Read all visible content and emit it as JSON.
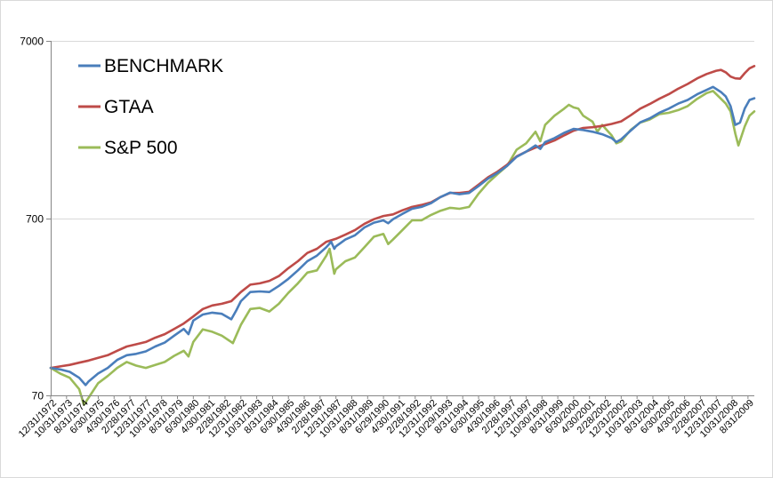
{
  "chart_data": {
    "type": "line",
    "y_scale": "log",
    "ylim": [
      70,
      7000
    ],
    "y_ticks": [
      {
        "value": 70,
        "label": "70"
      },
      {
        "value": 700,
        "label": "700"
      },
      {
        "value": 7000,
        "label": "7000"
      }
    ],
    "grid": "horizontal",
    "legend_position": "top-left",
    "x_start": "1972-12-31",
    "x_end": "2009-12-31",
    "x_tick_labels": [
      "12/31/1972",
      "10/31/1973",
      "8/31/1974",
      "6/30/1975",
      "4/30/1976",
      "2/28/1977",
      "12/31/1977",
      "10/31/1978",
      "8/31/1979",
      "6/30/1980",
      "4/30/1981",
      "2/28/1982",
      "12/31/1982",
      "10/31/1983",
      "8/31/1984",
      "6/30/1985",
      "4/30/1986",
      "2/28/1987",
      "12/31/1987",
      "10/31/1988",
      "8/31/1989",
      "6/29/1990",
      "4/30/1991",
      "2/28/1992",
      "12/31/1992",
      "10/29/1993",
      "8/31/1994",
      "6/30/1995",
      "4/30/1996",
      "2/28/1997",
      "12/31/1997",
      "10/30/1998",
      "8/31/1999",
      "6/30/2000",
      "4/30/2001",
      "2/28/2002",
      "12/31/2002",
      "10/31/2003",
      "8/31/2004",
      "6/30/2005",
      "4/30/2006",
      "2/28/2007",
      "12/31/2007",
      "10/31/2008",
      "8/31/2009"
    ],
    "series": [
      {
        "name": "BENCHMARK",
        "color": "#4a7ebb",
        "points": [
          [
            "1972-12-31",
            100
          ],
          [
            "1973-06-30",
            98
          ],
          [
            "1973-12-31",
            95
          ],
          [
            "1974-06-30",
            88
          ],
          [
            "1974-10-31",
            80
          ],
          [
            "1974-12-31",
            84
          ],
          [
            "1975-06-30",
            93
          ],
          [
            "1975-12-31",
            100
          ],
          [
            "1976-06-30",
            111
          ],
          [
            "1976-12-31",
            118
          ],
          [
            "1977-06-30",
            120
          ],
          [
            "1977-12-31",
            124
          ],
          [
            "1978-06-30",
            132
          ],
          [
            "1978-12-31",
            139
          ],
          [
            "1979-06-30",
            152
          ],
          [
            "1979-12-31",
            166
          ],
          [
            "1980-03-31",
            155
          ],
          [
            "1980-06-30",
            185
          ],
          [
            "1980-12-31",
            200
          ],
          [
            "1981-06-30",
            205
          ],
          [
            "1981-12-31",
            202
          ],
          [
            "1982-06-30",
            188
          ],
          [
            "1982-09-30",
            210
          ],
          [
            "1982-12-31",
            238
          ],
          [
            "1983-06-30",
            268
          ],
          [
            "1983-12-31",
            270
          ],
          [
            "1984-06-30",
            268
          ],
          [
            "1984-12-31",
            290
          ],
          [
            "1985-06-30",
            318
          ],
          [
            "1985-12-31",
            355
          ],
          [
            "1986-06-30",
            400
          ],
          [
            "1986-12-31",
            430
          ],
          [
            "1987-06-30",
            480
          ],
          [
            "1987-09-30",
            515
          ],
          [
            "1987-11-30",
            470
          ],
          [
            "1987-12-31",
            485
          ],
          [
            "1988-06-30",
            530
          ],
          [
            "1988-12-31",
            560
          ],
          [
            "1989-06-30",
            620
          ],
          [
            "1989-12-31",
            660
          ],
          [
            "1990-06-30",
            680
          ],
          [
            "1990-09-30",
            655
          ],
          [
            "1990-12-31",
            690
          ],
          [
            "1991-06-30",
            740
          ],
          [
            "1991-12-31",
            790
          ],
          [
            "1992-06-30",
            810
          ],
          [
            "1992-12-31",
            850
          ],
          [
            "1993-06-30",
            920
          ],
          [
            "1993-12-31",
            975
          ],
          [
            "1994-06-30",
            955
          ],
          [
            "1994-12-31",
            970
          ],
          [
            "1995-06-30",
            1060
          ],
          [
            "1995-12-31",
            1170
          ],
          [
            "1996-06-30",
            1260
          ],
          [
            "1996-12-31",
            1380
          ],
          [
            "1997-06-30",
            1550
          ],
          [
            "1997-12-31",
            1660
          ],
          [
            "1998-06-30",
            1800
          ],
          [
            "1998-09-30",
            1720
          ],
          [
            "1998-12-31",
            1880
          ],
          [
            "1999-06-30",
            1980
          ],
          [
            "1999-12-31",
            2120
          ],
          [
            "2000-06-30",
            2230
          ],
          [
            "2000-12-31",
            2200
          ],
          [
            "2001-06-30",
            2150
          ],
          [
            "2001-12-31",
            2080
          ],
          [
            "2002-06-30",
            1980
          ],
          [
            "2002-09-30",
            1880
          ],
          [
            "2002-12-31",
            1950
          ],
          [
            "2003-06-30",
            2180
          ],
          [
            "2003-12-31",
            2430
          ],
          [
            "2004-06-30",
            2560
          ],
          [
            "2004-12-31",
            2750
          ],
          [
            "2005-06-30",
            2900
          ],
          [
            "2005-12-31",
            3100
          ],
          [
            "2006-06-30",
            3250
          ],
          [
            "2006-12-31",
            3500
          ],
          [
            "2007-06-30",
            3700
          ],
          [
            "2007-10-31",
            3850
          ],
          [
            "2008-03-31",
            3600
          ],
          [
            "2008-06-30",
            3400
          ],
          [
            "2008-09-30",
            3000
          ],
          [
            "2008-12-31",
            2350
          ],
          [
            "2009-03-31",
            2420
          ],
          [
            "2009-06-30",
            2900
          ],
          [
            "2009-09-30",
            3250
          ],
          [
            "2009-12-31",
            3320
          ]
        ]
      },
      {
        "name": "GTAA",
        "color": "#be4b48",
        "points": [
          [
            "1972-12-31",
            100
          ],
          [
            "1973-06-30",
            102
          ],
          [
            "1973-12-31",
            104
          ],
          [
            "1974-06-30",
            107
          ],
          [
            "1974-12-31",
            110
          ],
          [
            "1975-06-30",
            114
          ],
          [
            "1975-12-31",
            118
          ],
          [
            "1976-06-30",
            125
          ],
          [
            "1976-12-31",
            132
          ],
          [
            "1977-06-30",
            136
          ],
          [
            "1977-12-31",
            140
          ],
          [
            "1978-06-30",
            148
          ],
          [
            "1978-12-31",
            155
          ],
          [
            "1979-06-30",
            166
          ],
          [
            "1979-12-31",
            178
          ],
          [
            "1980-06-30",
            195
          ],
          [
            "1980-12-31",
            215
          ],
          [
            "1981-06-30",
            225
          ],
          [
            "1981-12-31",
            230
          ],
          [
            "1982-06-30",
            238
          ],
          [
            "1982-12-31",
            268
          ],
          [
            "1983-06-30",
            295
          ],
          [
            "1983-12-31",
            300
          ],
          [
            "1984-06-30",
            310
          ],
          [
            "1984-12-31",
            330
          ],
          [
            "1985-06-30",
            365
          ],
          [
            "1985-12-31",
            400
          ],
          [
            "1986-06-30",
            445
          ],
          [
            "1986-12-31",
            470
          ],
          [
            "1987-06-30",
            515
          ],
          [
            "1987-12-31",
            535
          ],
          [
            "1988-06-30",
            565
          ],
          [
            "1988-12-31",
            600
          ],
          [
            "1989-06-30",
            650
          ],
          [
            "1989-12-31",
            690
          ],
          [
            "1990-06-30",
            720
          ],
          [
            "1990-12-31",
            735
          ],
          [
            "1991-06-30",
            775
          ],
          [
            "1991-12-31",
            810
          ],
          [
            "1992-06-30",
            830
          ],
          [
            "1992-12-31",
            860
          ],
          [
            "1993-06-30",
            920
          ],
          [
            "1993-12-31",
            970
          ],
          [
            "1994-06-30",
            970
          ],
          [
            "1994-12-31",
            985
          ],
          [
            "1995-06-30",
            1080
          ],
          [
            "1995-12-31",
            1190
          ],
          [
            "1996-06-30",
            1280
          ],
          [
            "1996-12-31",
            1400
          ],
          [
            "1997-06-30",
            1560
          ],
          [
            "1997-12-31",
            1660
          ],
          [
            "1998-06-30",
            1750
          ],
          [
            "1998-12-31",
            1830
          ],
          [
            "1999-06-30",
            1920
          ],
          [
            "1999-12-31",
            2050
          ],
          [
            "2000-06-30",
            2180
          ],
          [
            "2000-12-31",
            2260
          ],
          [
            "2001-06-30",
            2280
          ],
          [
            "2001-12-31",
            2320
          ],
          [
            "2002-06-30",
            2380
          ],
          [
            "2002-12-31",
            2460
          ],
          [
            "2003-06-30",
            2660
          ],
          [
            "2003-12-31",
            2900
          ],
          [
            "2004-06-30",
            3080
          ],
          [
            "2004-12-31",
            3300
          ],
          [
            "2005-06-30",
            3500
          ],
          [
            "2005-12-31",
            3760
          ],
          [
            "2006-06-30",
            4000
          ],
          [
            "2006-12-31",
            4300
          ],
          [
            "2007-06-30",
            4550
          ],
          [
            "2007-12-31",
            4750
          ],
          [
            "2008-03-31",
            4800
          ],
          [
            "2008-06-30",
            4650
          ],
          [
            "2008-09-30",
            4400
          ],
          [
            "2008-12-31",
            4300
          ],
          [
            "2009-03-31",
            4280
          ],
          [
            "2009-06-30",
            4600
          ],
          [
            "2009-09-30",
            4900
          ],
          [
            "2009-12-31",
            5050
          ]
        ]
      },
      {
        "name": "S&P 500",
        "color": "#9bbb59",
        "points": [
          [
            "1972-12-31",
            100
          ],
          [
            "1973-06-30",
            93
          ],
          [
            "1973-12-31",
            88
          ],
          [
            "1974-06-30",
            76
          ],
          [
            "1974-09-30",
            62
          ],
          [
            "1974-12-31",
            68
          ],
          [
            "1975-06-30",
            82
          ],
          [
            "1975-12-31",
            90
          ],
          [
            "1976-06-30",
            100
          ],
          [
            "1976-12-31",
            108
          ],
          [
            "1977-06-30",
            103
          ],
          [
            "1977-12-31",
            100
          ],
          [
            "1978-06-30",
            104
          ],
          [
            "1978-12-31",
            108
          ],
          [
            "1979-06-30",
            117
          ],
          [
            "1979-12-31",
            125
          ],
          [
            "1980-03-31",
            116
          ],
          [
            "1980-06-30",
            140
          ],
          [
            "1980-12-31",
            165
          ],
          [
            "1981-06-30",
            160
          ],
          [
            "1981-12-31",
            152
          ],
          [
            "1982-06-30",
            140
          ],
          [
            "1982-07-31",
            138
          ],
          [
            "1982-12-31",
            175
          ],
          [
            "1983-06-30",
            215
          ],
          [
            "1983-12-31",
            218
          ],
          [
            "1984-06-30",
            208
          ],
          [
            "1984-12-31",
            230
          ],
          [
            "1985-06-30",
            265
          ],
          [
            "1985-12-31",
            300
          ],
          [
            "1986-06-30",
            345
          ],
          [
            "1986-12-31",
            355
          ],
          [
            "1987-06-30",
            430
          ],
          [
            "1987-08-31",
            470
          ],
          [
            "1987-11-30",
            340
          ],
          [
            "1987-12-31",
            360
          ],
          [
            "1988-06-30",
            400
          ],
          [
            "1988-12-31",
            420
          ],
          [
            "1989-06-30",
            480
          ],
          [
            "1989-12-31",
            550
          ],
          [
            "1990-06-30",
            570
          ],
          [
            "1990-09-30",
            500
          ],
          [
            "1990-12-31",
            530
          ],
          [
            "1991-06-30",
            600
          ],
          [
            "1991-12-31",
            680
          ],
          [
            "1992-06-30",
            680
          ],
          [
            "1992-12-31",
            730
          ],
          [
            "1993-06-30",
            770
          ],
          [
            "1993-12-31",
            800
          ],
          [
            "1994-06-30",
            790
          ],
          [
            "1994-12-31",
            810
          ],
          [
            "1995-06-30",
            960
          ],
          [
            "1995-12-31",
            1110
          ],
          [
            "1996-06-30",
            1240
          ],
          [
            "1996-12-31",
            1380
          ],
          [
            "1997-06-30",
            1700
          ],
          [
            "1997-12-31",
            1850
          ],
          [
            "1998-06-30",
            2150
          ],
          [
            "1998-09-30",
            1900
          ],
          [
            "1998-12-31",
            2350
          ],
          [
            "1999-06-30",
            2650
          ],
          [
            "1999-12-31",
            2900
          ],
          [
            "2000-03-31",
            3050
          ],
          [
            "2000-06-30",
            2950
          ],
          [
            "2000-09-30",
            2900
          ],
          [
            "2000-12-31",
            2650
          ],
          [
            "2001-06-30",
            2450
          ],
          [
            "2001-09-30",
            2150
          ],
          [
            "2001-12-31",
            2350
          ],
          [
            "2002-06-30",
            2050
          ],
          [
            "2002-09-30",
            1850
          ],
          [
            "2002-12-31",
            1900
          ],
          [
            "2003-06-30",
            2200
          ],
          [
            "2003-12-31",
            2420
          ],
          [
            "2004-06-30",
            2520
          ],
          [
            "2004-12-31",
            2700
          ],
          [
            "2005-06-30",
            2750
          ],
          [
            "2005-12-31",
            2850
          ],
          [
            "2006-06-30",
            3000
          ],
          [
            "2006-12-31",
            3300
          ],
          [
            "2007-06-30",
            3550
          ],
          [
            "2007-10-31",
            3650
          ],
          [
            "2008-03-31",
            3300
          ],
          [
            "2008-06-30",
            3100
          ],
          [
            "2008-09-30",
            2800
          ],
          [
            "2008-12-31",
            2100
          ],
          [
            "2009-02-28",
            1800
          ],
          [
            "2009-06-30",
            2300
          ],
          [
            "2009-09-30",
            2650
          ],
          [
            "2009-12-31",
            2800
          ]
        ]
      }
    ]
  }
}
